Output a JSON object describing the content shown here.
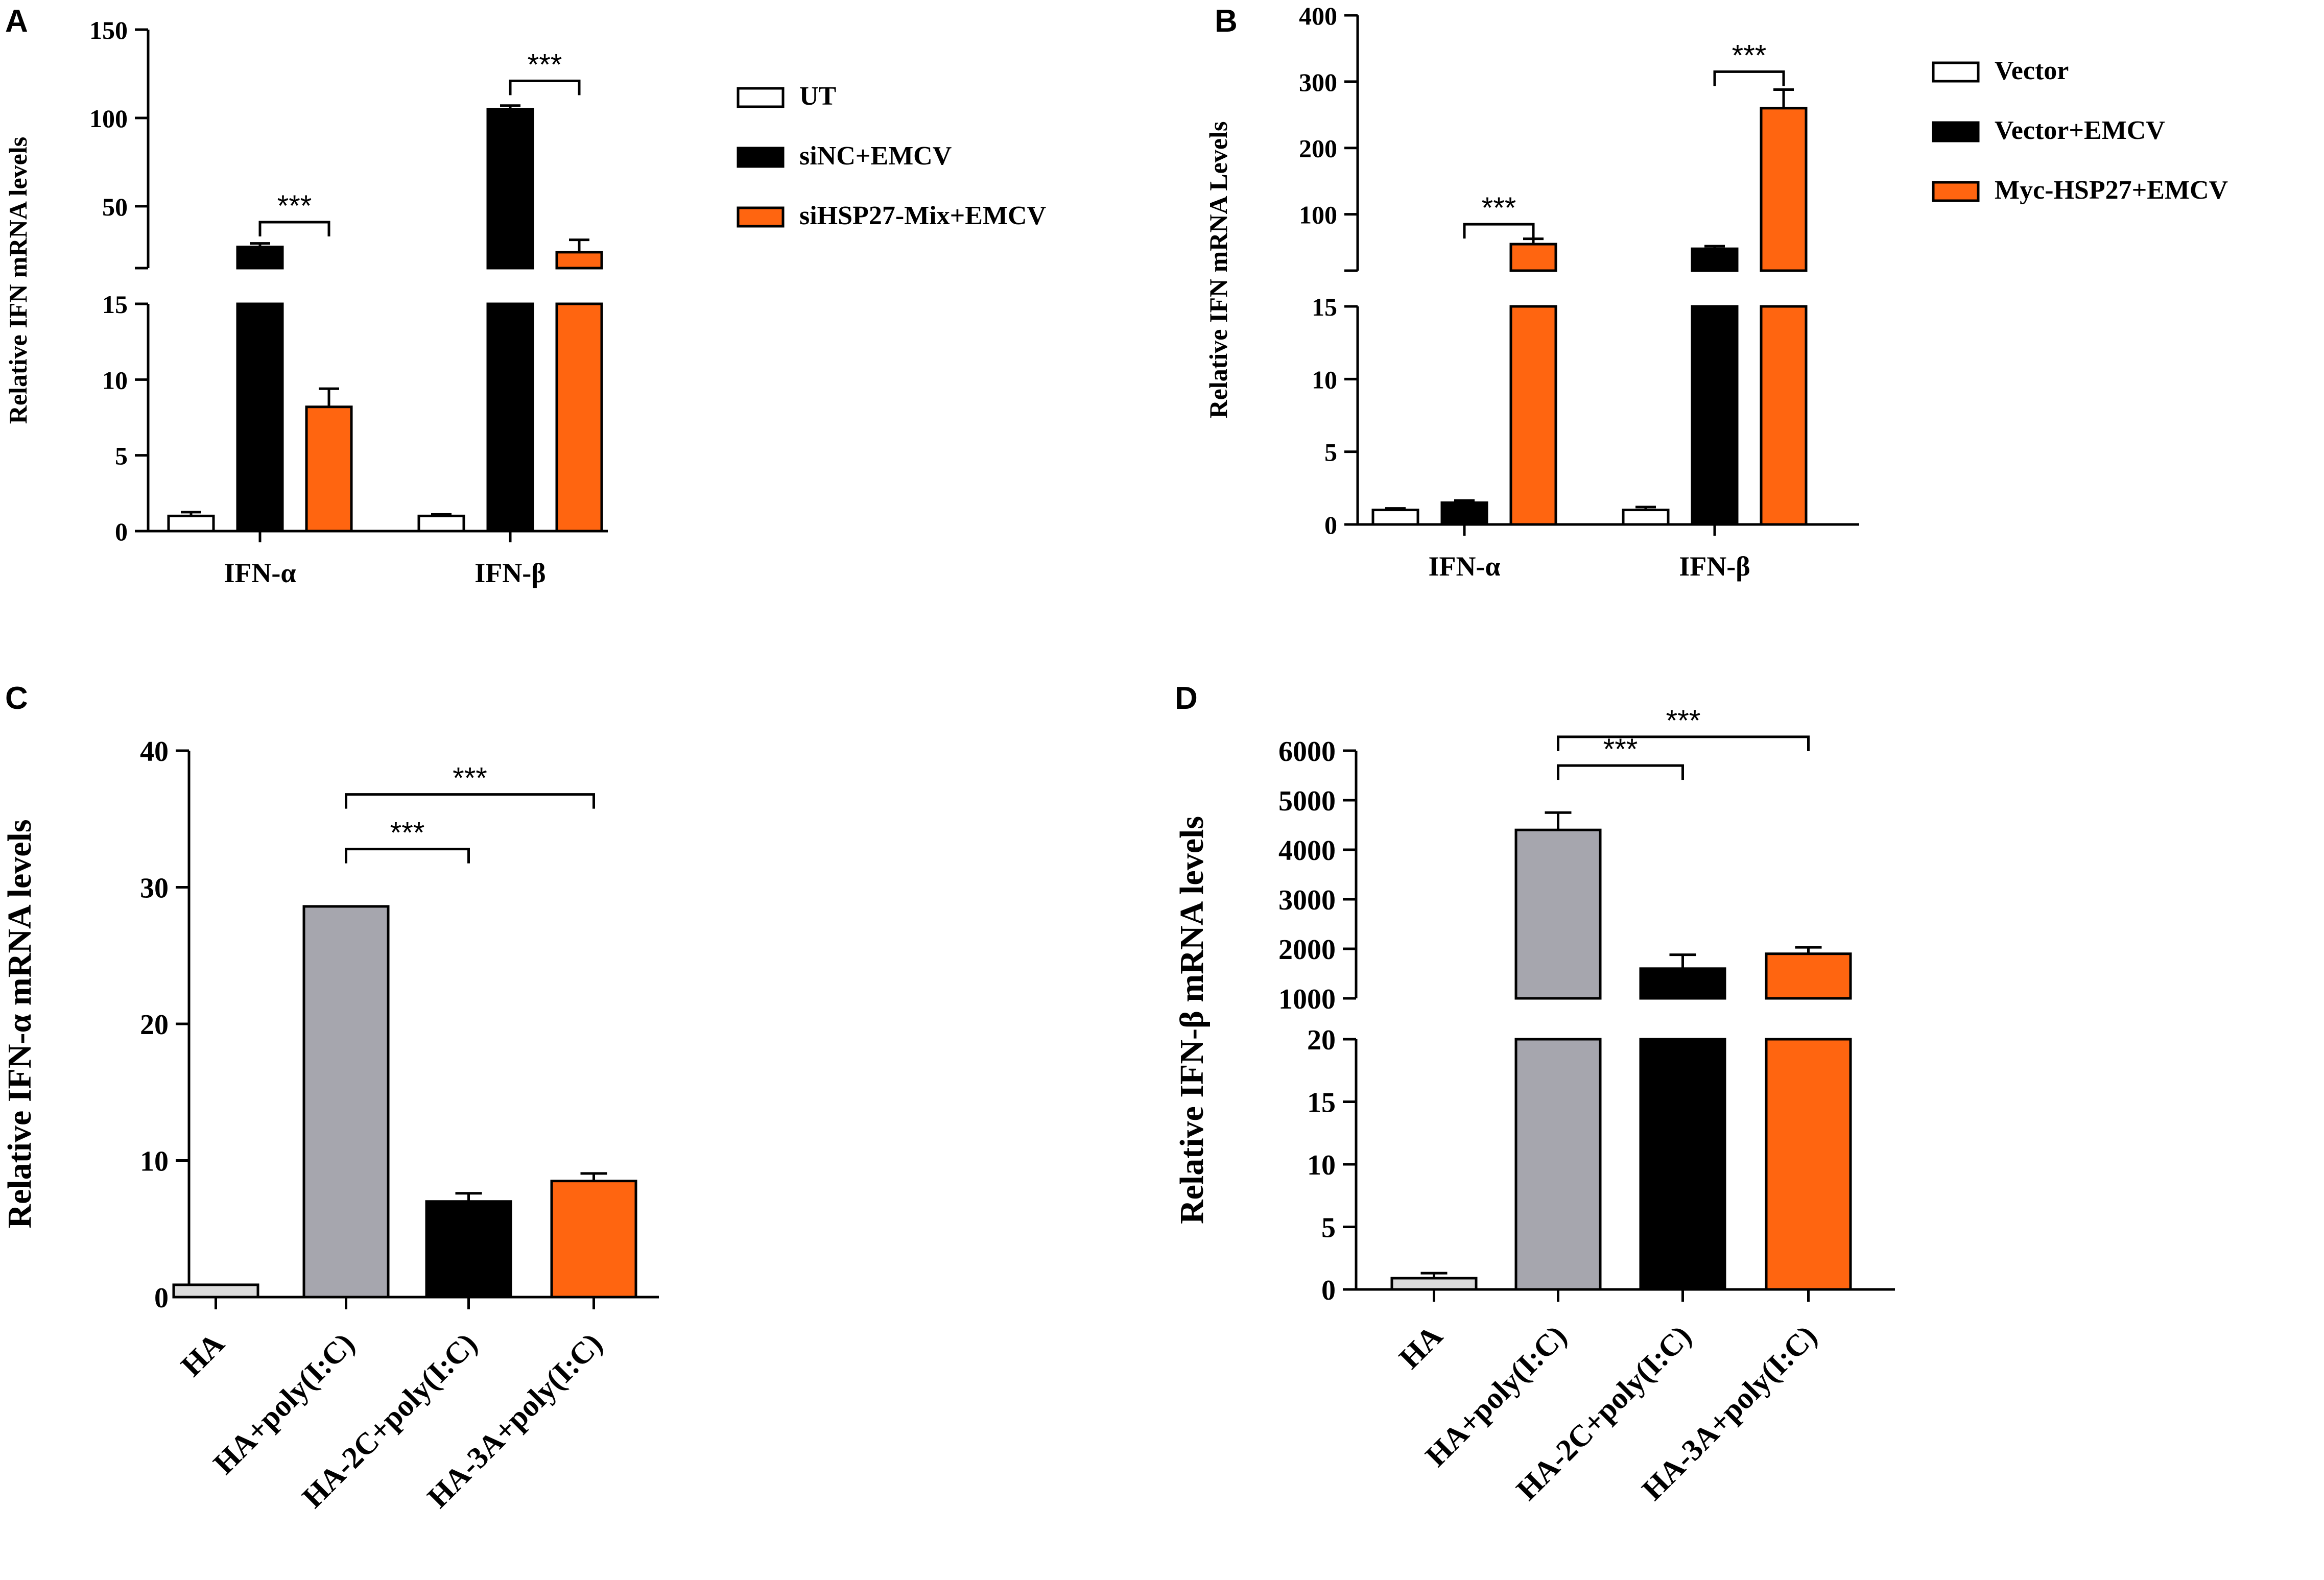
{
  "colors": {
    "white": "#ffffff",
    "black": "#000000",
    "orange": "#ff6510",
    "gray": "#a6a6ae",
    "light_gray": "#dcdcdc"
  },
  "chart_data": [
    {
      "panel": "A",
      "type": "bar",
      "ylabel": "Relative IFN mRNA levels",
      "categories": [
        "IFN-α",
        "IFN-β"
      ],
      "series": [
        {
          "name": "UT",
          "color": "white",
          "values": [
            1.0,
            1.0
          ],
          "errors": [
            0.25,
            0.1
          ]
        },
        {
          "name": "siNC+EMCV",
          "color": "black",
          "values": [
            27,
            105
          ],
          "errors": [
            2,
            2
          ]
        },
        {
          "name": "siHSP27-Mix+EMCV",
          "color": "orange",
          "values": [
            8.2,
            24
          ],
          "errors": [
            1.2,
            7
          ]
        }
      ],
      "axis_break": {
        "lower_range": [
          0,
          15
        ],
        "upper_range": [
          15,
          150
        ]
      },
      "ticks": [
        {
          "label": "0",
          "value": 0
        },
        {
          "label": "5",
          "value": 5
        },
        {
          "label": "10",
          "value": 10
        },
        {
          "label": "15",
          "value": 15
        },
        {
          "label": "50",
          "value": 50
        },
        {
          "label": "100",
          "value": 100
        },
        {
          "label": "150",
          "value": 150
        }
      ],
      "significance": [
        {
          "label": "***",
          "category": 0,
          "from_series": 1,
          "to_series": 2,
          "level": 41
        },
        {
          "label": "***",
          "category": 1,
          "from_series": 1,
          "to_series": 2,
          "level": 121
        }
      ],
      "legend": {
        "position": "right",
        "entries": [
          "UT",
          "siNC+EMCV",
          "siHSP27-Mix+EMCV"
        ]
      }
    },
    {
      "panel": "B",
      "type": "bar",
      "ylabel": "Relative IFN mRNA Levels",
      "categories": [
        "IFN-α",
        "IFN-β"
      ],
      "series": [
        {
          "name": "Vector",
          "color": "white",
          "values": [
            1.0,
            1.0
          ],
          "errors": [
            0.1,
            0.2
          ]
        },
        {
          "name": "Vector+EMCV",
          "color": "black",
          "values": [
            1.5,
            48
          ],
          "errors": [
            0.15,
            4
          ]
        },
        {
          "name": "Myc-HSP27+EMCV",
          "color": "orange",
          "values": [
            55,
            260
          ],
          "errors": [
            8,
            28
          ]
        }
      ],
      "axis_break": {
        "lower_range": [
          0,
          15
        ],
        "upper_range": [
          15,
          400
        ]
      },
      "ticks": [
        {
          "label": "0",
          "value": 0
        },
        {
          "label": "5",
          "value": 5
        },
        {
          "label": "10",
          "value": 10
        },
        {
          "label": "15",
          "value": 15
        },
        {
          "label": "100",
          "value": 100
        },
        {
          "label": "200",
          "value": 200
        },
        {
          "label": "300",
          "value": 300
        },
        {
          "label": "400",
          "value": 400
        }
      ],
      "significance": [
        {
          "label": "***",
          "category": 0,
          "from_series": 1,
          "to_series": 2,
          "level": 85
        },
        {
          "label": "***",
          "category": 1,
          "from_series": 1,
          "to_series": 2,
          "level": 315
        }
      ],
      "legend": {
        "position": "right",
        "entries": [
          "Vector",
          "Vector+EMCV",
          "Myc-HSP27+EMCV"
        ]
      }
    },
    {
      "panel": "C",
      "type": "bar",
      "ylabel": "Relative IFN-α mRNA levels",
      "categories": [
        "HA",
        "HA+poly(I:C)",
        "HA-2C+poly(I:C)",
        "HA-3A+poly(I:C)"
      ],
      "colors": [
        "light_gray",
        "gray",
        "black",
        "orange"
      ],
      "values": [
        0.9,
        28.6,
        7.0,
        8.5
      ],
      "errors": [
        0,
        0,
        0.6,
        0.55
      ],
      "ylim": [
        0,
        40
      ],
      "ticks": [
        {
          "label": "0",
          "value": 0
        },
        {
          "label": "10",
          "value": 10
        },
        {
          "label": "20",
          "value": 20
        },
        {
          "label": "30",
          "value": 30
        },
        {
          "label": "40",
          "value": 40
        }
      ],
      "significance": [
        {
          "label": "***",
          "from": 1,
          "to": 2,
          "level": 32.8
        },
        {
          "label": "***",
          "from": 1,
          "to": 3,
          "level": 36.8
        }
      ]
    },
    {
      "panel": "D",
      "type": "bar",
      "ylabel": "Relative IFN-β mRNA levels",
      "categories": [
        "HA",
        "HA+poly(I:C)",
        "HA-2C+poly(I:C)",
        "HA-3A+poly(I:C)"
      ],
      "colors": [
        "light_gray",
        "gray",
        "black",
        "orange"
      ],
      "values": [
        0.9,
        4400,
        1600,
        1900
      ],
      "errors": [
        0.4,
        350,
        280,
        130
      ],
      "axis_break": {
        "lower_range": [
          0,
          20
        ],
        "upper_range": [
          1000,
          6000
        ]
      },
      "ticks": [
        {
          "label": "0",
          "value": 0
        },
        {
          "label": "5",
          "value": 5
        },
        {
          "label": "10",
          "value": 10
        },
        {
          "label": "15",
          "value": 15
        },
        {
          "label": "20",
          "value": 20
        },
        {
          "label": "1000",
          "value": 1000
        },
        {
          "label": "2000",
          "value": 2000
        },
        {
          "label": "3000",
          "value": 3000
        },
        {
          "label": "4000",
          "value": 4000
        },
        {
          "label": "5000",
          "value": 5000
        },
        {
          "label": "6000",
          "value": 6000
        }
      ],
      "significance": [
        {
          "label": "***",
          "from": 1,
          "to": 2,
          "level": 5700
        },
        {
          "label": "***",
          "from": 1,
          "to": 3,
          "level": 6280
        }
      ]
    }
  ]
}
